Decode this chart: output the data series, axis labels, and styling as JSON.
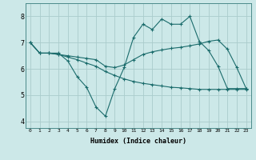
{
  "xlabel": "Humidex (Indice chaleur)",
  "bg_color": "#cce8e8",
  "line_color": "#1a6b6b",
  "grid_color": "#aacccc",
  "xlim": [
    -0.5,
    23.5
  ],
  "ylim": [
    3.75,
    8.5
  ],
  "xticks": [
    0,
    1,
    2,
    3,
    4,
    5,
    6,
    7,
    8,
    9,
    10,
    11,
    12,
    13,
    14,
    15,
    16,
    17,
    18,
    19,
    20,
    21,
    22,
    23
  ],
  "yticks": [
    4,
    5,
    6,
    7,
    8
  ],
  "line1_x": [
    0,
    1,
    2,
    3,
    4,
    5,
    6,
    7,
    8,
    9,
    10,
    11,
    12,
    13,
    14,
    15,
    16,
    17,
    18,
    19,
    20,
    21,
    22,
    23
  ],
  "line1_y": [
    7.0,
    6.6,
    6.6,
    6.6,
    6.3,
    5.7,
    5.3,
    4.55,
    4.2,
    5.25,
    6.05,
    7.2,
    7.7,
    7.5,
    7.9,
    7.7,
    7.7,
    8.0,
    7.05,
    6.7,
    6.1,
    5.25,
    5.25,
    5.25
  ],
  "line2_x": [
    0,
    1,
    2,
    3,
    4,
    5,
    6,
    7,
    8,
    9,
    10,
    11,
    12,
    13,
    14,
    15,
    16,
    17,
    18,
    19,
    20,
    21,
    22,
    23
  ],
  "line2_y": [
    7.0,
    6.6,
    6.6,
    6.55,
    6.5,
    6.45,
    6.4,
    6.35,
    6.1,
    6.05,
    6.15,
    6.35,
    6.55,
    6.65,
    6.72,
    6.78,
    6.82,
    6.88,
    6.95,
    7.05,
    7.1,
    6.75,
    6.05,
    5.25
  ],
  "line3_x": [
    0,
    1,
    2,
    3,
    4,
    5,
    6,
    7,
    8,
    9,
    10,
    11,
    12,
    13,
    14,
    15,
    16,
    17,
    18,
    19,
    20,
    21,
    22,
    23
  ],
  "line3_y": [
    7.0,
    6.6,
    6.6,
    6.55,
    6.45,
    6.35,
    6.22,
    6.1,
    5.9,
    5.75,
    5.62,
    5.52,
    5.45,
    5.4,
    5.35,
    5.3,
    5.28,
    5.25,
    5.22,
    5.22,
    5.22,
    5.22,
    5.22,
    5.22
  ]
}
